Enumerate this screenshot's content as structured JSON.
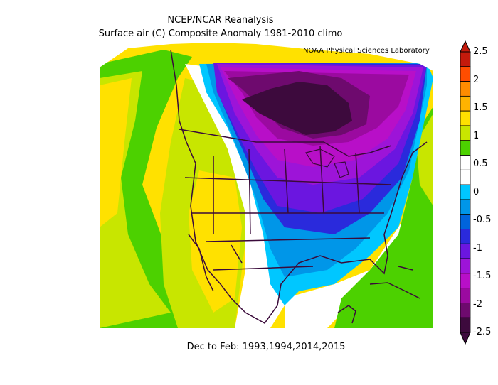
{
  "header": {
    "title_line1": "NCEP/NCAR Reanalysis",
    "title_line2": "Surface air (C) Composite Anomaly 1981-2010 climo",
    "lab": "NOAA Physical Sciences Laboratory"
  },
  "footer": {
    "period": "Dec to Feb: 1993,1994,2014,2015"
  },
  "colorbar": {
    "labels": [
      "2.5",
      "2",
      "1.5",
      "1",
      "0.5",
      "0",
      "-0.5",
      "-1",
      "-1.5",
      "-2",
      "-2.5"
    ],
    "colors": [
      "#c41a0c",
      "#ff4d00",
      "#ff8c00",
      "#ffb300",
      "#ffe100",
      "#c8e600",
      "#4cd100",
      "#ffffff",
      "#ffffff",
      "#00c7ff",
      "#0096e8",
      "#0064dc",
      "#2a2adc",
      "#6b16e0",
      "#9d14d8",
      "#b80fc8",
      "#9b0aa0",
      "#6e0a6e",
      "#3d0a3d"
    ]
  },
  "legend_colors": {
    "very_cold": "#3d0a3d",
    "cold": "#9b0aa0",
    "cool": "#0096e8",
    "neutral": "#ffffff",
    "warm_green": "#4cd100",
    "warm_yellow": "#ffe100",
    "land_boundary": "#3a0a3a"
  }
}
